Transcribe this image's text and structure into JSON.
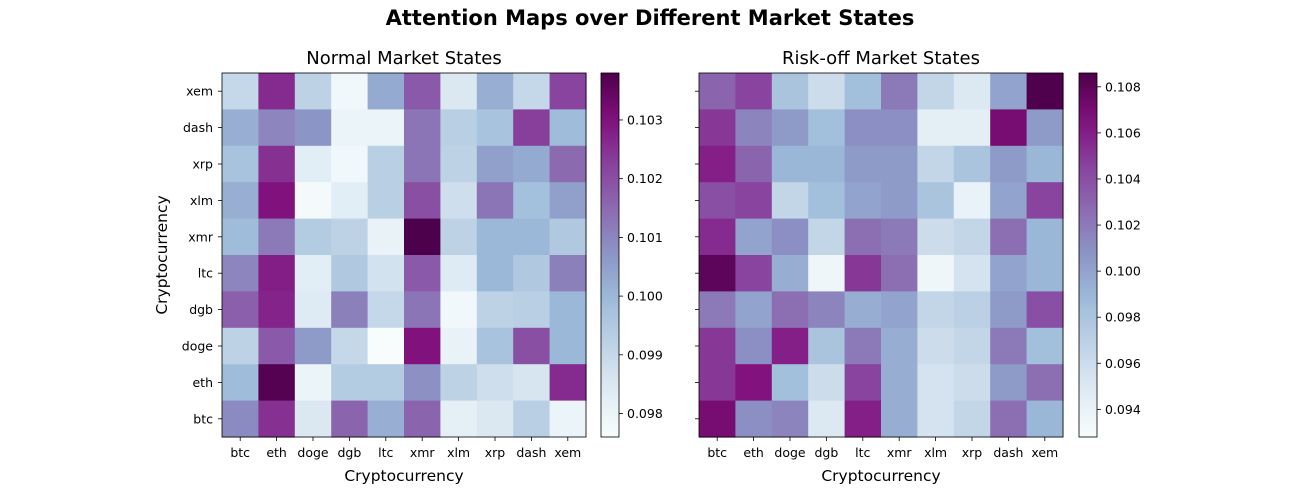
{
  "suptitle": "Attention Maps over Different Market States",
  "chart_data": [
    {
      "type": "heatmap",
      "title": "Normal Market States",
      "xlabel": "Cryptocurrency",
      "ylabel": "Cryptocurrency",
      "x_categories": [
        "btc",
        "eth",
        "doge",
        "dgb",
        "ltc",
        "xmr",
        "xlm",
        "xrp",
        "dash",
        "xem"
      ],
      "y_categories_top_to_bottom": [
        "xem",
        "dash",
        "xrp",
        "xlm",
        "xmr",
        "ltc",
        "dgb",
        "doge",
        "eth",
        "btc"
      ],
      "colormap": "BuPu",
      "vmin": 0.0976,
      "vmax": 0.1038,
      "colorbar_ticks": [
        0.098,
        0.099,
        0.1,
        0.101,
        0.102,
        0.103
      ],
      "colorbar_tick_labels": [
        "0.098",
        "0.099",
        "0.100",
        "0.101",
        "0.102",
        "0.103"
      ],
      "show_ylabel": true,
      "show_yticklabels": true,
      "values": [
        [
          0.099,
          0.1026,
          0.0992,
          0.0978,
          0.1003,
          0.1018,
          0.0985,
          0.1002,
          0.099,
          0.1022
        ],
        [
          0.1002,
          0.101,
          0.1007,
          0.098,
          0.098,
          0.1013,
          0.0993,
          0.0997,
          0.1023,
          0.0999
        ],
        [
          0.0997,
          0.1025,
          0.0983,
          0.0978,
          0.0993,
          0.1013,
          0.0992,
          0.1005,
          0.1003,
          0.1015
        ],
        [
          0.1002,
          0.103,
          0.0977,
          0.0983,
          0.0993,
          0.102,
          0.0988,
          0.1013,
          0.0998,
          0.1005
        ],
        [
          0.0999,
          0.1012,
          0.0994,
          0.0992,
          0.0981,
          0.1038,
          0.0992,
          0.1,
          0.1,
          0.0995
        ],
        [
          0.101,
          0.1028,
          0.0983,
          0.0995,
          0.0987,
          0.1018,
          0.0984,
          0.1,
          0.0995,
          0.1011
        ],
        [
          0.1017,
          0.1027,
          0.0984,
          0.1011,
          0.099,
          0.1013,
          0.0978,
          0.0992,
          0.0993,
          0.1
        ],
        [
          0.0992,
          0.1018,
          0.1006,
          0.099,
          0.0975,
          0.103,
          0.0981,
          0.0997,
          0.102,
          0.1
        ],
        [
          0.0999,
          0.1037,
          0.098,
          0.0994,
          0.0994,
          0.1008,
          0.0992,
          0.0988,
          0.0986,
          0.1026
        ],
        [
          0.1009,
          0.1025,
          0.0985,
          0.1016,
          0.1002,
          0.1016,
          0.0982,
          0.0985,
          0.0993,
          0.098
        ]
      ]
    },
    {
      "type": "heatmap",
      "title": "Risk-off Market States",
      "xlabel": "Cryptocurrency",
      "ylabel": "",
      "x_categories": [
        "btc",
        "eth",
        "doge",
        "dgb",
        "ltc",
        "xmr",
        "xlm",
        "xrp",
        "dash",
        "xem"
      ],
      "y_categories_top_to_bottom": [
        "xem",
        "dash",
        "xrp",
        "xlm",
        "xmr",
        "ltc",
        "dgb",
        "doge",
        "eth",
        "btc"
      ],
      "colormap": "BuPu",
      "vmin": 0.0928,
      "vmax": 0.1086,
      "colorbar_ticks": [
        0.094,
        0.096,
        0.098,
        0.1,
        0.102,
        0.104,
        0.106,
        0.108
      ],
      "colorbar_tick_labels": [
        "0.094",
        "0.096",
        "0.098",
        "0.100",
        "0.102",
        "0.104",
        "0.106",
        "0.108"
      ],
      "show_ylabel": false,
      "show_yticklabels": false,
      "values": [
        [
          0.103,
          0.1045,
          0.098,
          0.096,
          0.0985,
          0.102,
          0.0965,
          0.095,
          0.1,
          0.1085
        ],
        [
          0.105,
          0.1015,
          0.1005,
          0.0985,
          0.101,
          0.101,
          0.0945,
          0.0945,
          0.107,
          0.1005
        ],
        [
          0.106,
          0.103,
          0.099,
          0.099,
          0.1005,
          0.1005,
          0.0965,
          0.098,
          0.1005,
          0.099
        ],
        [
          0.104,
          0.1045,
          0.0965,
          0.0985,
          0.1,
          0.1005,
          0.098,
          0.094,
          0.1,
          0.1045
        ],
        [
          0.1055,
          0.1,
          0.101,
          0.0965,
          0.1025,
          0.102,
          0.096,
          0.0965,
          0.1025,
          0.099
        ],
        [
          0.108,
          0.1045,
          0.0995,
          0.0935,
          0.105,
          0.1025,
          0.0935,
          0.0955,
          0.1,
          0.099
        ],
        [
          0.102,
          0.1,
          0.1025,
          0.1015,
          0.0995,
          0.1,
          0.0965,
          0.097,
          0.1005,
          0.104
        ],
        [
          0.105,
          0.101,
          0.106,
          0.098,
          0.102,
          0.0995,
          0.096,
          0.0965,
          0.102,
          0.0985
        ],
        [
          0.105,
          0.1065,
          0.0985,
          0.096,
          0.1045,
          0.0995,
          0.0955,
          0.096,
          0.1005,
          0.1025
        ],
        [
          0.107,
          0.101,
          0.1015,
          0.095,
          0.106,
          0.0995,
          0.0955,
          0.0965,
          0.1025,
          0.099
        ]
      ]
    }
  ]
}
